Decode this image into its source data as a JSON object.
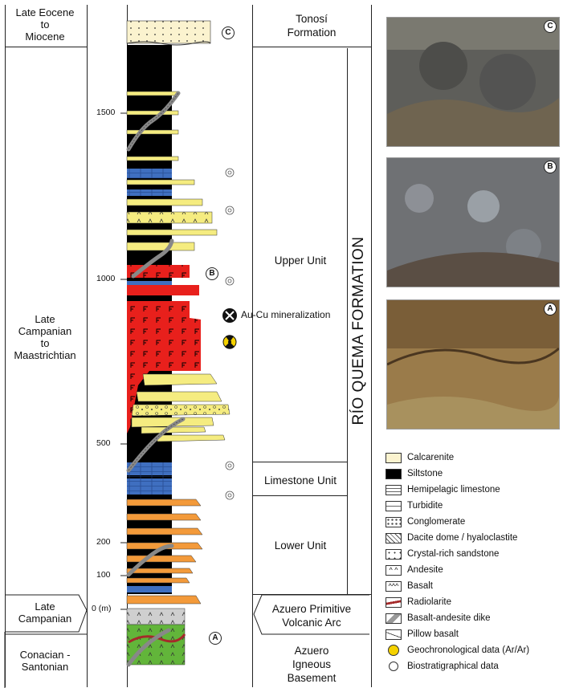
{
  "ages": [
    {
      "label": "Late Eocene\nto\nMiocene"
    },
    {
      "label": "Late\nCampanian\nto\nMaastrichtian"
    },
    {
      "label": "Late\nCampanian"
    },
    {
      "label": "Conacian -\nSantonian"
    }
  ],
  "units": {
    "tonosi": "Tonosí\nFormation",
    "upper": "Upper Unit",
    "limestone": "Limestone Unit",
    "lower": "Lower Unit",
    "arc": "Azuero Primitive\nVolcanic Arc",
    "basement": "Azuero\nIgneous\nBasement",
    "formation": "RÍO QUEMA FORMATION"
  },
  "ticks": [
    "1500",
    "1000",
    "500",
    "200",
    "100",
    "0 (m)"
  ],
  "markers": {
    "a": "A",
    "b": "B",
    "c": "C"
  },
  "annotation": "Au-Cu mineralization",
  "photos": [
    {
      "label": "C"
    },
    {
      "label": "B"
    },
    {
      "label": "A"
    }
  ],
  "legend": [
    {
      "label": "Calcarenite",
      "color": "#fbf3cf"
    },
    {
      "label": "Siltstone",
      "color": "#000000"
    },
    {
      "label": "Hemipelagic limestone",
      "color": "#ffffff"
    },
    {
      "label": "Turbidite",
      "color": "#ffffff"
    },
    {
      "label": "Conglomerate",
      "color": "#ffffff"
    },
    {
      "label": "Dacite dome / hyaloclastite",
      "color": "#ffffff"
    },
    {
      "label": "Crystal-rich sandstone",
      "color": "#ffffff"
    },
    {
      "label": "Andesite",
      "color": "#ffffff"
    },
    {
      "label": "Basalt",
      "color": "#ffffff"
    },
    {
      "label": "Radiolarite",
      "color": "#ffffff"
    },
    {
      "label": "Basalt-andesite dike",
      "color": "#ffffff"
    },
    {
      "label": "Pillow basalt",
      "color": "#ffffff"
    },
    {
      "label": "Geochronological data (Ar/Ar)",
      "color": "#ffffff"
    },
    {
      "label": "Biostratigraphical data",
      "color": "#ffffff"
    }
  ],
  "colors": {
    "calcarenite": "#fbf3cf",
    "siltstone": "#000000",
    "limestone": "#3f6fc0",
    "sandstone": "#f5ec80",
    "dacite": "#e8201c",
    "andesite": "#f39a3a",
    "basalt": "#cfcfcf",
    "pillow": "#62b53a",
    "radiolarite": "#a52a2a"
  }
}
